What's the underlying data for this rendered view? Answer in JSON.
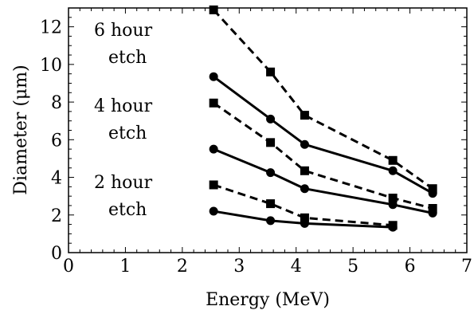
{
  "chart_data": {
    "type": "line",
    "title": "",
    "xlabel": "Energy (MeV)",
    "ylabel": "Diameter (μm)",
    "xlim": [
      0,
      7
    ],
    "ylim": [
      0,
      13
    ],
    "x_ticks": [
      "0",
      "1",
      "2",
      "3",
      "4",
      "5",
      "6",
      "7"
    ],
    "y_ticks": [
      "0",
      "2",
      "4",
      "6",
      "8",
      "10",
      "12"
    ],
    "grid": false,
    "legend": "none",
    "annotations": [
      {
        "lines": [
          "6 hour",
          "etch"
        ]
      },
      {
        "lines": [
          "4 hour",
          "etch"
        ]
      },
      {
        "lines": [
          "2 hour",
          "etch"
        ]
      }
    ],
    "series": [
      {
        "marker": "square",
        "line": "dashed",
        "x": [
          2.55,
          3.55,
          4.15,
          5.7,
          6.4
        ],
        "y": [
          12.9,
          9.6,
          7.3,
          4.9,
          3.4
        ]
      },
      {
        "marker": "circle",
        "line": "solid",
        "x": [
          2.55,
          3.55,
          4.15,
          5.7,
          6.4
        ],
        "y": [
          9.35,
          7.1,
          5.75,
          4.35,
          3.15
        ]
      },
      {
        "marker": "square",
        "line": "dashed",
        "x": [
          2.55,
          3.55,
          4.15,
          5.7,
          6.4
        ],
        "y": [
          7.95,
          5.85,
          4.35,
          2.9,
          2.35
        ]
      },
      {
        "marker": "circle",
        "line": "solid",
        "x": [
          2.55,
          3.55,
          4.15,
          5.7,
          6.4
        ],
        "y": [
          5.5,
          4.25,
          3.4,
          2.55,
          2.1
        ]
      },
      {
        "marker": "square",
        "line": "dashed",
        "x": [
          2.55,
          3.55,
          4.15,
          5.7
        ],
        "y": [
          3.6,
          2.6,
          1.85,
          1.45
        ]
      },
      {
        "marker": "circle",
        "line": "solid",
        "x": [
          2.55,
          3.55,
          4.15,
          5.7
        ],
        "y": [
          2.2,
          1.7,
          1.55,
          1.35
        ]
      }
    ],
    "colors": {
      "line": "#000000",
      "marker": "#000000",
      "background": "#ffffff"
    }
  }
}
